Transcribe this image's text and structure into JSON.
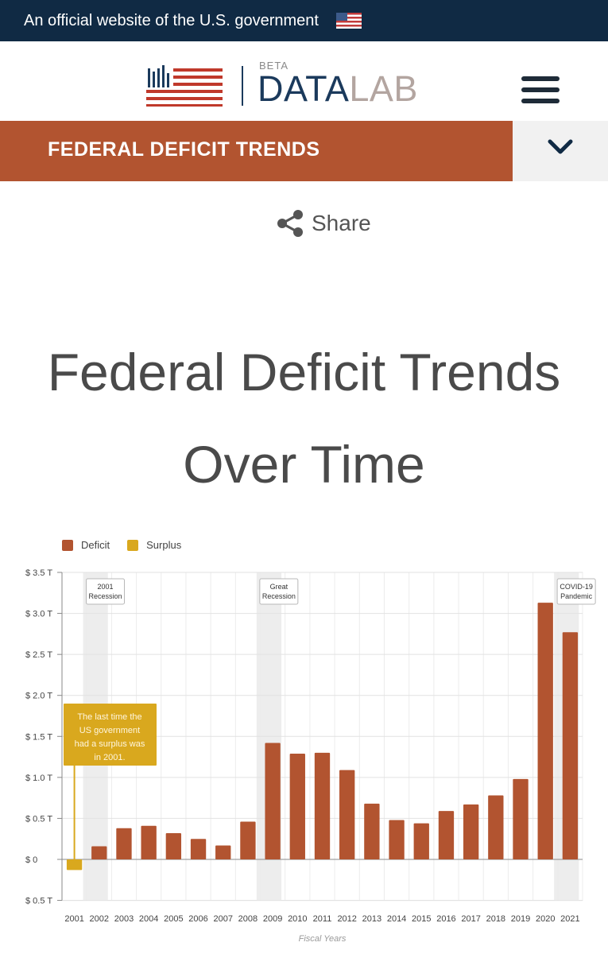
{
  "gov_banner": {
    "text": "An official website of the U.S. government"
  },
  "logo": {
    "beta": "BETA",
    "data": "DATA",
    "lab": "LAB"
  },
  "section": {
    "title": "FEDERAL DEFICIT TRENDS"
  },
  "share": {
    "label": "Share"
  },
  "page": {
    "title_line1": "Federal Deficit Trends",
    "title_line2": "Over Time"
  },
  "colors": {
    "deficit": "#b25430",
    "surplus": "#d9a81e",
    "banner": "#102a44",
    "section_bar": "#b25430"
  },
  "chart_data": {
    "type": "bar",
    "xlabel": "Fiscal Years",
    "ylabel": "",
    "ylim": [
      -0.5,
      3.5
    ],
    "yticks": [
      {
        "value": 3.5,
        "label": "$ 3.5 T"
      },
      {
        "value": 3.0,
        "label": "$ 3.0 T"
      },
      {
        "value": 2.5,
        "label": "$ 2.5 T"
      },
      {
        "value": 2.0,
        "label": "$ 2.0 T"
      },
      {
        "value": 1.5,
        "label": "$ 1.5 T"
      },
      {
        "value": 1.0,
        "label": "$ 1.0 T"
      },
      {
        "value": 0.5,
        "label": "$ 0.5 T"
      },
      {
        "value": 0,
        "label": "$ 0"
      },
      {
        "value": -0.5,
        "label": "$ 0.5 T"
      }
    ],
    "legend": [
      "Deficit",
      "Surplus"
    ],
    "legend_position": "top-left",
    "grid": true,
    "categories": [
      "2001",
      "2002",
      "2003",
      "2004",
      "2005",
      "2006",
      "2007",
      "2008",
      "2009",
      "2010",
      "2011",
      "2012",
      "2013",
      "2014",
      "2015",
      "2016",
      "2017",
      "2018",
      "2019",
      "2020",
      "2021"
    ],
    "series": [
      {
        "name": "Deficit",
        "values": [
          null,
          0.16,
          0.38,
          0.41,
          0.32,
          0.25,
          0.17,
          0.46,
          1.42,
          1.29,
          1.3,
          1.09,
          0.68,
          0.48,
          0.44,
          0.59,
          0.67,
          0.78,
          0.98,
          3.13,
          2.77
        ]
      },
      {
        "name": "Surplus",
        "values": [
          0.13,
          null,
          null,
          null,
          null,
          null,
          null,
          null,
          null,
          null,
          null,
          null,
          null,
          null,
          null,
          null,
          null,
          null,
          null,
          null,
          null
        ]
      }
    ],
    "annotations": [
      {
        "text_lines": [
          "2001",
          "Recession"
        ],
        "x_range": [
          "2001",
          "2002"
        ]
      },
      {
        "text_lines": [
          "Great",
          "Recession"
        ],
        "x_range": [
          "2008",
          "2009"
        ]
      },
      {
        "text_lines": [
          "COVID-19",
          "Pandemic"
        ],
        "x_range": [
          "2020",
          "2021"
        ]
      }
    ],
    "callout": {
      "text": "The last time the US government had a surplus was in 2001.",
      "x": "2001"
    }
  }
}
